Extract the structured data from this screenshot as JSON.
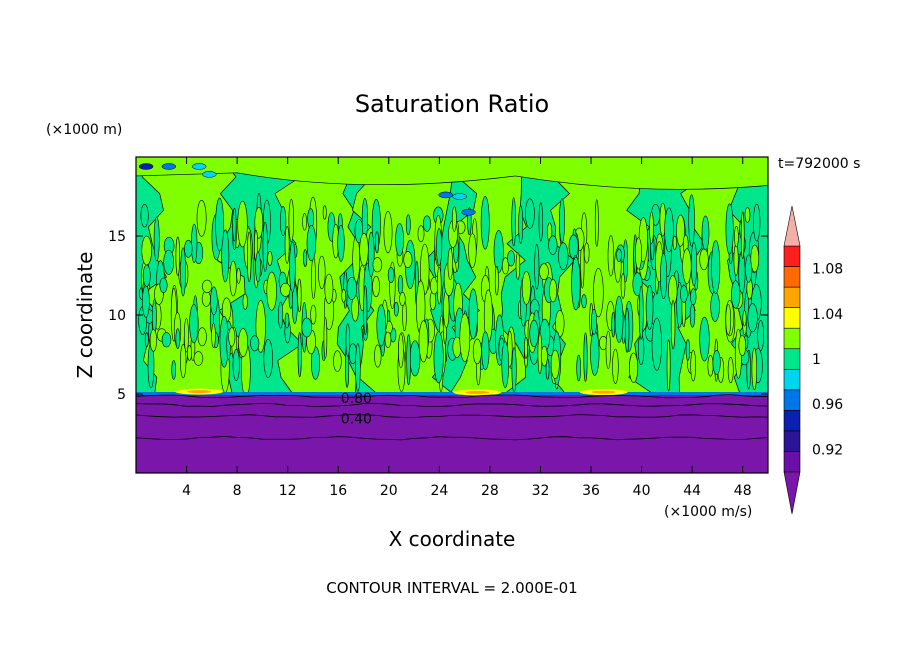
{
  "chart_data": {
    "type": "heatmap",
    "title": "Saturation Ratio",
    "xlabel": "X coordinate",
    "ylabel": "Z coordinate",
    "x_unit": "(×1000 m/s)",
    "y_unit": "(×1000 m)",
    "time_label": "t=792000 s",
    "footer": "CONTOUR INTERVAL = 2.000E-01",
    "xlim": [
      0,
      50
    ],
    "ylim": [
      0,
      20
    ],
    "x_ticks": [
      4,
      8,
      12,
      16,
      20,
      24,
      28,
      32,
      36,
      40,
      44,
      48
    ],
    "x_tick_labels": [
      "4",
      "8",
      "12",
      "16",
      "20",
      "24",
      "28",
      "32",
      "36",
      "40",
      "44",
      "48"
    ],
    "y_ticks": [
      5,
      10,
      15
    ],
    "y_tick_labels": [
      "5",
      "10",
      "15"
    ],
    "contour_labels": [
      {
        "text": "0.80",
        "x": 16.2,
        "y": 4.8
      },
      {
        "text": "0.40",
        "x": 16.2,
        "y": 3.5
      }
    ],
    "colorbar": {
      "levels": [
        0.9,
        0.92,
        0.94,
        0.96,
        0.98,
        1.0,
        1.02,
        1.04,
        1.06,
        1.08,
        1.1
      ],
      "colors": [
        "#6a0fa8",
        "#2b1596",
        "#0b1fb0",
        "#0077e8",
        "#00d4ee",
        "#00e68c",
        "#7fff00",
        "#ffff00",
        "#ffa500",
        "#ff6a00",
        "#ff1e1e"
      ],
      "under_color": "#7b16aa",
      "over_color": "#f4b0a8",
      "tick_values": [
        0.92,
        0.96,
        1.0,
        1.04,
        1.08
      ],
      "tick_labels": [
        "0.92",
        "0.96",
        "1",
        "1.04",
        "1.08"
      ]
    },
    "regions": {
      "base_color": "#00e68c",
      "dry_layer_top": 5,
      "dry_color": "#7b16aa",
      "dry_contours": [
        0.2,
        0.4,
        0.6,
        0.8
      ],
      "supersaturated_plumes_x": [
        [
          1.5,
          7.5
        ],
        [
          12,
          17
        ],
        [
          18,
          24
        ],
        [
          26,
          30
        ],
        [
          34,
          40
        ],
        [
          44,
          47
        ]
      ],
      "plume_color": "#7fff00"
    }
  }
}
